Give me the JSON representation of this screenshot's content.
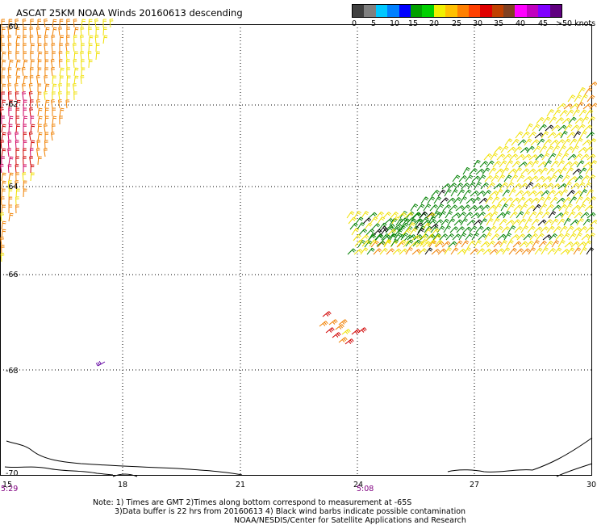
{
  "title": "ASCAT 25KM NOAA Winds 20160613 descending",
  "legend": {
    "colors": [
      "#404040",
      "#808080",
      "#00c8ff",
      "#0080ff",
      "#0000ff",
      "#00a000",
      "#00d000",
      "#f0f000",
      "#ffc000",
      "#ff8000",
      "#ff4000",
      "#e00000",
      "#c04000",
      "#804020",
      "#ff00ff",
      "#c000c0",
      "#8000ff",
      "#600080"
    ],
    "ticks": [
      "0",
      "5",
      "10",
      "15",
      "20",
      "25",
      "30",
      "35",
      "40",
      "45",
      ">50 knots"
    ]
  },
  "axes": {
    "lat_labels": [
      "-60",
      "-62",
      "-64",
      "-66",
      "-68",
      "-70"
    ],
    "lon_labels": [
      "15",
      "18",
      "21",
      "24",
      "27",
      "30"
    ],
    "time_labels": [
      "5:29",
      "5:08"
    ]
  },
  "notes": [
    "Note: 1) Times are GMT 2)Times along bottom correspond to measurement at -65S",
    "3)Data buffer is 22 hrs from 20160613 4) Black wind barbs indicate possible contamination",
    "NOAA/NESDIS/Center for Satellite Applications and Research"
  ],
  "barb_colors": {
    "green": "#008000",
    "yellow": "#f0e000",
    "orange": "#f08000",
    "red_orange": "#e04000",
    "red": "#d00000",
    "magenta": "#d00060",
    "purple": "#6000a0",
    "black": "#000000"
  }
}
